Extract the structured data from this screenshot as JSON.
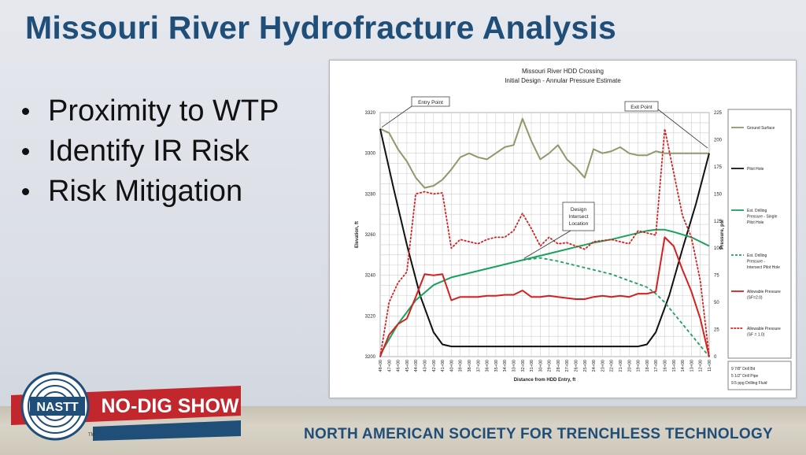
{
  "slide": {
    "title": "Missouri River Hydrofracture Analysis",
    "bullets": [
      "Proximity to WTP",
      "Identify IR Risk",
      "Risk Mitigation"
    ],
    "footer": "NORTH AMERICAN SOCIETY FOR TRENCHLESS TECHNOLOGY",
    "logo": {
      "org": "NASTT",
      "event": "NO-DIG SHOW",
      "tm": "TM"
    },
    "colors": {
      "title": "#1f4e79",
      "banner": "#c1272d",
      "navy": "#1f4e79"
    }
  },
  "chart_data": {
    "type": "line",
    "title": "Missouri River HDD Crossing",
    "subtitle": "Initial Design - Annular Pressure Estimate",
    "xlabel": "Distance from HDD Entry, ft",
    "ylabel": "Elevation, ft",
    "y2label": "Pressure, psi",
    "x_ticks": [
      "48+00",
      "47+00",
      "46+00",
      "45+00",
      "44+00",
      "43+00",
      "42+00",
      "41+00",
      "40+00",
      "39+00",
      "38+00",
      "37+00",
      "36+00",
      "35+00",
      "34+00",
      "33+00",
      "32+00",
      "31+00",
      "30+00",
      "29+00",
      "28+00",
      "27+00",
      "26+00",
      "25+00",
      "24+00",
      "23+00",
      "22+00",
      "21+00",
      "20+00",
      "19+00",
      "18+00",
      "17+00",
      "16+00",
      "15+00",
      "14+00",
      "13+00",
      "12+00",
      "11+00"
    ],
    "ylim": [
      3200,
      3320
    ],
    "y_ticks": [
      3200,
      3220,
      3240,
      3260,
      3280,
      3300,
      3320
    ],
    "y2lim": [
      0,
      225
    ],
    "y2_ticks": [
      0,
      25,
      50,
      75,
      100,
      125,
      150,
      175,
      200,
      225
    ],
    "grid": true,
    "legend_position": "right",
    "series": [
      {
        "name": "Ground Surface",
        "axis": "left",
        "color": "#8c9a6b",
        "dash": "solid",
        "points": [
          [
            0,
            3312
          ],
          [
            1,
            3310
          ],
          [
            2,
            3302
          ],
          [
            3,
            3296
          ],
          [
            4,
            3288
          ],
          [
            5,
            3283
          ],
          [
            6,
            3284
          ],
          [
            7,
            3287
          ],
          [
            8,
            3292
          ],
          [
            9,
            3298
          ],
          [
            10,
            3300
          ],
          [
            11,
            3298
          ],
          [
            12,
            3297
          ],
          [
            13,
            3300
          ],
          [
            14,
            3303
          ],
          [
            15,
            3304
          ],
          [
            16,
            3317
          ],
          [
            17,
            3306
          ],
          [
            18,
            3297
          ],
          [
            19,
            3300
          ],
          [
            20,
            3304
          ],
          [
            21,
            3297
          ],
          [
            22,
            3293
          ],
          [
            23,
            3288
          ],
          [
            24,
            3302
          ],
          [
            25,
            3300
          ],
          [
            26,
            3301
          ],
          [
            27,
            3303
          ],
          [
            28,
            3300
          ],
          [
            29,
            3299
          ],
          [
            30,
            3299
          ],
          [
            31,
            3301
          ],
          [
            32,
            3300
          ],
          [
            33,
            3300
          ],
          [
            34,
            3300
          ],
          [
            35,
            3300
          ],
          [
            36,
            3300
          ],
          [
            37,
            3300
          ]
        ]
      },
      {
        "name": "Pilot Hole",
        "axis": "left",
        "color": "#111111",
        "dash": "solid",
        "points": [
          [
            0,
            3312
          ],
          [
            1.5,
            3283
          ],
          [
            3,
            3255
          ],
          [
            4.5,
            3230
          ],
          [
            6,
            3212
          ],
          [
            7,
            3206
          ],
          [
            8,
            3205
          ],
          [
            29,
            3205
          ],
          [
            30,
            3206
          ],
          [
            31,
            3212
          ],
          [
            32.5,
            3230
          ],
          [
            34,
            3253
          ],
          [
            35.5,
            3275
          ],
          [
            37,
            3300
          ]
        ]
      },
      {
        "name": "Est. Drilling Pressure - Single Pilot Hole",
        "axis": "right",
        "color": "#1aa25b",
        "dash": "solid",
        "points": [
          [
            0,
            2
          ],
          [
            2,
            30
          ],
          [
            4,
            52
          ],
          [
            6,
            66
          ],
          [
            8,
            73
          ],
          [
            10,
            77
          ],
          [
            12,
            81
          ],
          [
            14,
            85
          ],
          [
            16,
            89
          ],
          [
            18,
            93
          ],
          [
            20,
            97
          ],
          [
            22,
            101
          ],
          [
            24,
            105
          ],
          [
            26,
            108
          ],
          [
            28,
            112
          ],
          [
            30,
            116
          ],
          [
            31,
            117
          ],
          [
            32,
            117
          ],
          [
            33,
            115
          ],
          [
            35,
            110
          ],
          [
            37,
            102
          ]
        ]
      },
      {
        "name": "Est. Drilling Pressure - Intersect Pilot Hole",
        "axis": "right",
        "color": "#1aa25b",
        "dash": "dashed",
        "points": [
          [
            16,
            89
          ],
          [
            18,
            91
          ],
          [
            20,
            88
          ],
          [
            22,
            84
          ],
          [
            24,
            80
          ],
          [
            26,
            76
          ],
          [
            28,
            70
          ],
          [
            30,
            64
          ],
          [
            31,
            58
          ],
          [
            32,
            50
          ],
          [
            33,
            40
          ],
          [
            34,
            30
          ],
          [
            35,
            20
          ],
          [
            36,
            10
          ],
          [
            37,
            0
          ]
        ]
      },
      {
        "name": "Allowable Pressure (SF=2.0)",
        "axis": "right",
        "color": "#d42020",
        "dash": "solid",
        "points": [
          [
            0,
            0
          ],
          [
            1,
            20
          ],
          [
            2,
            30
          ],
          [
            3,
            35
          ],
          [
            4,
            55
          ],
          [
            5,
            76
          ],
          [
            6,
            75
          ],
          [
            7,
            76
          ],
          [
            8,
            52
          ],
          [
            9,
            55
          ],
          [
            10,
            55
          ],
          [
            11,
            55
          ],
          [
            12,
            56
          ],
          [
            13,
            56
          ],
          [
            14,
            57
          ],
          [
            15,
            57
          ],
          [
            16,
            61
          ],
          [
            17,
            55
          ],
          [
            18,
            55
          ],
          [
            19,
            56
          ],
          [
            20,
            55
          ],
          [
            21,
            54
          ],
          [
            22,
            53
          ],
          [
            23,
            53
          ],
          [
            24,
            55
          ],
          [
            25,
            56
          ],
          [
            26,
            55
          ],
          [
            27,
            56
          ],
          [
            28,
            55
          ],
          [
            29,
            58
          ],
          [
            30,
            58
          ],
          [
            31,
            60
          ],
          [
            32,
            110
          ],
          [
            33,
            102
          ],
          [
            34,
            80
          ],
          [
            35,
            60
          ],
          [
            36,
            35
          ],
          [
            37,
            0
          ]
        ]
      },
      {
        "name": "Allowable Pressure (SF = 1.0)",
        "axis": "right",
        "color": "#d42020",
        "dash": "dotted",
        "points": [
          [
            0,
            0
          ],
          [
            1,
            50
          ],
          [
            2,
            68
          ],
          [
            3,
            78
          ],
          [
            4,
            150
          ],
          [
            5,
            152
          ],
          [
            6,
            150
          ],
          [
            7,
            151
          ],
          [
            8,
            100
          ],
          [
            9,
            108
          ],
          [
            10,
            106
          ],
          [
            11,
            104
          ],
          [
            12,
            108
          ],
          [
            13,
            110
          ],
          [
            14,
            110
          ],
          [
            15,
            116
          ],
          [
            16,
            132
          ],
          [
            17,
            118
          ],
          [
            18,
            102
          ],
          [
            19,
            110
          ],
          [
            20,
            104
          ],
          [
            21,
            105
          ],
          [
            22,
            102
          ],
          [
            23,
            99
          ],
          [
            24,
            106
          ],
          [
            25,
            107
          ],
          [
            26,
            108
          ],
          [
            27,
            106
          ],
          [
            28,
            104
          ],
          [
            29,
            116
          ],
          [
            30,
            114
          ],
          [
            31,
            112
          ],
          [
            32,
            210
          ],
          [
            33,
            170
          ],
          [
            34,
            130
          ],
          [
            35,
            110
          ],
          [
            36,
            70
          ],
          [
            37,
            0
          ]
        ]
      }
    ],
    "annotations": [
      "Entry Point",
      "Exit Point",
      "Design Intersect Location"
    ],
    "notes": [
      "9 7/8\" Drill Bit",
      "5 1/2\" Drill Pipe",
      "9.5 ppg Drilling Fluid"
    ]
  }
}
